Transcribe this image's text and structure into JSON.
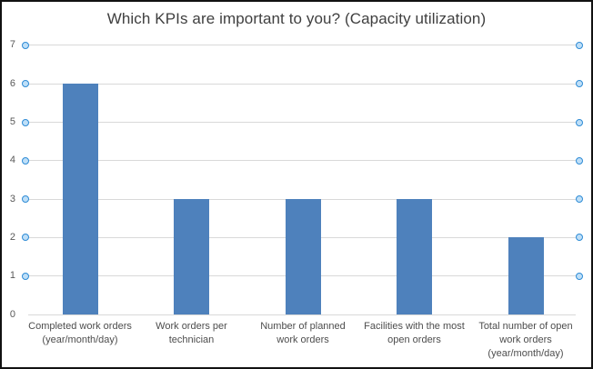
{
  "chart_data": {
    "type": "bar",
    "title": "Which KPIs are important to you? (Capacity utilization)",
    "categories": [
      "Completed work orders (year/month/day)",
      "Work orders per technician",
      "Number of planned work orders",
      "Facilities with the most open orders",
      "Total number of open work orders (year/month/day)"
    ],
    "category_lines": [
      [
        "Completed work orders",
        "(year/month/day)"
      ],
      [
        "Work orders per",
        "technician"
      ],
      [
        "Number of planned",
        "work orders"
      ],
      [
        "Facilities with the most",
        "open orders"
      ],
      [
        "Total number of open",
        "work orders",
        "(year/month/day)"
      ]
    ],
    "values": [
      6,
      3,
      3,
      3,
      2
    ],
    "xlabel": "",
    "ylabel": "",
    "ylim": [
      0,
      7
    ],
    "yticks": [
      0,
      1,
      2,
      3,
      4,
      5,
      6,
      7
    ],
    "grid": true,
    "legend": false,
    "colors": {
      "bar": "#4e81bc",
      "gridline": "#d9d9d9",
      "title_text": "#3f3f3f",
      "axis_text": "#595959",
      "label_text": "#4d4d4d",
      "marker_stroke": "#2e8bd5",
      "marker_fill": "#bedff8",
      "frame_border": "#111111"
    },
    "markers": {
      "shape": "circle",
      "levels": [
        1,
        2,
        3,
        4,
        5,
        6,
        7
      ],
      "sides": [
        "left",
        "right"
      ]
    }
  }
}
